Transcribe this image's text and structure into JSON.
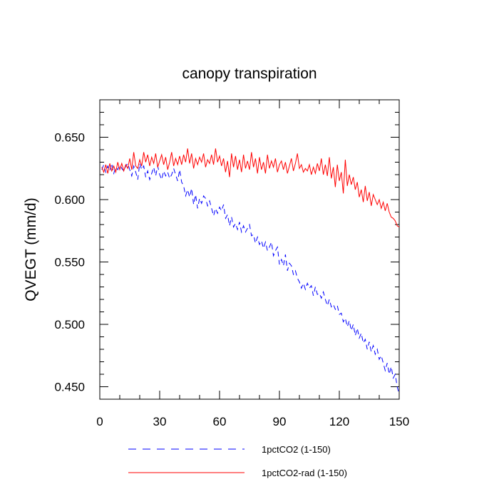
{
  "chart_data": {
    "type": "line",
    "title": "canopy transpiration",
    "xlabel": "",
    "ylabel": "QVEGT  (mm/d)",
    "xlim": [
      0,
      150
    ],
    "ylim": [
      0.44,
      0.68
    ],
    "x_ticks": [
      0,
      30,
      60,
      90,
      120,
      150
    ],
    "x_tick_labels": [
      "0",
      "30",
      "60",
      "90",
      "120",
      "150"
    ],
    "y_ticks": [
      0.45,
      0.5,
      0.55,
      0.6,
      0.65
    ],
    "y_tick_labels": [
      "0.450",
      "0.500",
      "0.550",
      "0.600",
      "0.650"
    ],
    "grid": false,
    "legend_position": "bottom",
    "series": [
      {
        "name": "1pctCO2 (1-150)",
        "color": "#0000ff",
        "dash": "dashed",
        "x": [
          1,
          2,
          3,
          4,
          5,
          6,
          7,
          8,
          9,
          10,
          11,
          12,
          13,
          14,
          15,
          16,
          17,
          18,
          19,
          20,
          21,
          22,
          23,
          24,
          25,
          26,
          27,
          28,
          29,
          30,
          31,
          32,
          33,
          34,
          35,
          36,
          37,
          38,
          39,
          40,
          41,
          42,
          43,
          44,
          45,
          46,
          47,
          48,
          49,
          50,
          51,
          52,
          53,
          54,
          55,
          56,
          57,
          58,
          59,
          60,
          61,
          62,
          63,
          64,
          65,
          66,
          67,
          68,
          69,
          70,
          71,
          72,
          73,
          74,
          75,
          76,
          77,
          78,
          79,
          80,
          81,
          82,
          83,
          84,
          85,
          86,
          87,
          88,
          89,
          90,
          91,
          92,
          93,
          94,
          95,
          96,
          97,
          98,
          99,
          100,
          101,
          102,
          103,
          104,
          105,
          106,
          107,
          108,
          109,
          110,
          111,
          112,
          113,
          114,
          115,
          116,
          117,
          118,
          119,
          120,
          121,
          122,
          123,
          124,
          125,
          126,
          127,
          128,
          129,
          130,
          131,
          132,
          133,
          134,
          135,
          136,
          137,
          138,
          139,
          140,
          141,
          142,
          143,
          144,
          145,
          146,
          147,
          148,
          149,
          150
        ],
        "values": [
          0.624,
          0.628,
          0.622,
          0.627,
          0.623,
          0.629,
          0.621,
          0.626,
          0.624,
          0.628,
          0.625,
          0.623,
          0.627,
          0.629,
          0.624,
          0.619,
          0.627,
          0.622,
          0.616,
          0.629,
          0.624,
          0.627,
          0.618,
          0.623,
          0.616,
          0.621,
          0.626,
          0.619,
          0.627,
          0.62,
          0.616,
          0.623,
          0.619,
          0.622,
          0.617,
          0.62,
          0.625,
          0.62,
          0.615,
          0.624,
          0.614,
          0.611,
          0.603,
          0.608,
          0.602,
          0.609,
          0.596,
          0.604,
          0.593,
          0.601,
          0.597,
          0.603,
          0.601,
          0.595,
          0.599,
          0.593,
          0.587,
          0.593,
          0.589,
          0.594,
          0.591,
          0.596,
          0.585,
          0.588,
          0.579,
          0.586,
          0.578,
          0.581,
          0.576,
          0.582,
          0.574,
          0.579,
          0.574,
          0.577,
          0.58,
          0.571,
          0.572,
          0.565,
          0.57,
          0.564,
          0.567,
          0.561,
          0.566,
          0.559,
          0.562,
          0.566,
          0.555,
          0.559,
          0.562,
          0.548,
          0.552,
          0.547,
          0.556,
          0.543,
          0.549,
          0.547,
          0.54,
          0.543,
          0.537,
          0.534,
          0.529,
          0.533,
          0.528,
          0.533,
          0.529,
          0.531,
          0.523,
          0.53,
          0.524,
          0.525,
          0.521,
          0.526,
          0.52,
          0.515,
          0.52,
          0.514,
          0.516,
          0.512,
          0.515,
          0.508,
          0.509,
          0.502,
          0.505,
          0.498,
          0.503,
          0.495,
          0.5,
          0.491,
          0.497,
          0.489,
          0.493,
          0.485,
          0.488,
          0.48,
          0.486,
          0.478,
          0.483,
          0.476,
          0.48,
          0.472,
          0.475,
          0.469,
          0.463,
          0.469,
          0.46,
          0.466,
          0.457,
          0.46,
          0.45,
          0.444
        ]
      },
      {
        "name": "1pctCO2-rad (1-150)",
        "color": "#ff0000",
        "dash": "solid",
        "x": [
          1,
          2,
          3,
          4,
          5,
          6,
          7,
          8,
          9,
          10,
          11,
          12,
          13,
          14,
          15,
          16,
          17,
          18,
          19,
          20,
          21,
          22,
          23,
          24,
          25,
          26,
          27,
          28,
          29,
          30,
          31,
          32,
          33,
          34,
          35,
          36,
          37,
          38,
          39,
          40,
          41,
          42,
          43,
          44,
          45,
          46,
          47,
          48,
          49,
          50,
          51,
          52,
          53,
          54,
          55,
          56,
          57,
          58,
          59,
          60,
          61,
          62,
          63,
          64,
          65,
          66,
          67,
          68,
          69,
          70,
          71,
          72,
          73,
          74,
          75,
          76,
          77,
          78,
          79,
          80,
          81,
          82,
          83,
          84,
          85,
          86,
          87,
          88,
          89,
          90,
          91,
          92,
          93,
          94,
          95,
          96,
          97,
          98,
          99,
          100,
          101,
          102,
          103,
          104,
          105,
          106,
          107,
          108,
          109,
          110,
          111,
          112,
          113,
          114,
          115,
          116,
          117,
          118,
          119,
          120,
          121,
          122,
          123,
          124,
          125,
          126,
          127,
          128,
          129,
          130,
          131,
          132,
          133,
          134,
          135,
          136,
          137,
          138,
          139,
          140,
          141,
          142,
          143,
          144,
          145,
          146,
          147,
          148,
          149,
          150
        ],
        "values": [
          0.626,
          0.622,
          0.628,
          0.621,
          0.629,
          0.623,
          0.627,
          0.622,
          0.63,
          0.624,
          0.629,
          0.623,
          0.628,
          0.625,
          0.633,
          0.624,
          0.638,
          0.627,
          0.625,
          0.632,
          0.627,
          0.638,
          0.63,
          0.636,
          0.627,
          0.634,
          0.629,
          0.637,
          0.626,
          0.631,
          0.636,
          0.628,
          0.634,
          0.624,
          0.63,
          0.638,
          0.627,
          0.633,
          0.628,
          0.635,
          0.628,
          0.636,
          0.63,
          0.641,
          0.629,
          0.637,
          0.625,
          0.633,
          0.628,
          0.634,
          0.63,
          0.637,
          0.626,
          0.632,
          0.629,
          0.636,
          0.628,
          0.641,
          0.63,
          0.635,
          0.627,
          0.633,
          0.622,
          0.631,
          0.618,
          0.637,
          0.626,
          0.635,
          0.624,
          0.632,
          0.622,
          0.636,
          0.625,
          0.631,
          0.624,
          0.638,
          0.626,
          0.633,
          0.621,
          0.634,
          0.624,
          0.63,
          0.621,
          0.636,
          0.625,
          0.631,
          0.626,
          0.633,
          0.622,
          0.628,
          0.631,
          0.624,
          0.63,
          0.621,
          0.627,
          0.633,
          0.623,
          0.629,
          0.637,
          0.625,
          0.628,
          0.622,
          0.625,
          0.623,
          0.628,
          0.62,
          0.626,
          0.621,
          0.629,
          0.623,
          0.633,
          0.62,
          0.628,
          0.619,
          0.634,
          0.617,
          0.626,
          0.61,
          0.628,
          0.615,
          0.622,
          0.605,
          0.632,
          0.611,
          0.62,
          0.612,
          0.618,
          0.608,
          0.614,
          0.602,
          0.608,
          0.598,
          0.611,
          0.599,
          0.606,
          0.595,
          0.604,
          0.6,
          0.596,
          0.6,
          0.593,
          0.598,
          0.591,
          0.597,
          0.59,
          0.586,
          0.585,
          0.583,
          0.579,
          0.578
        ]
      }
    ]
  }
}
